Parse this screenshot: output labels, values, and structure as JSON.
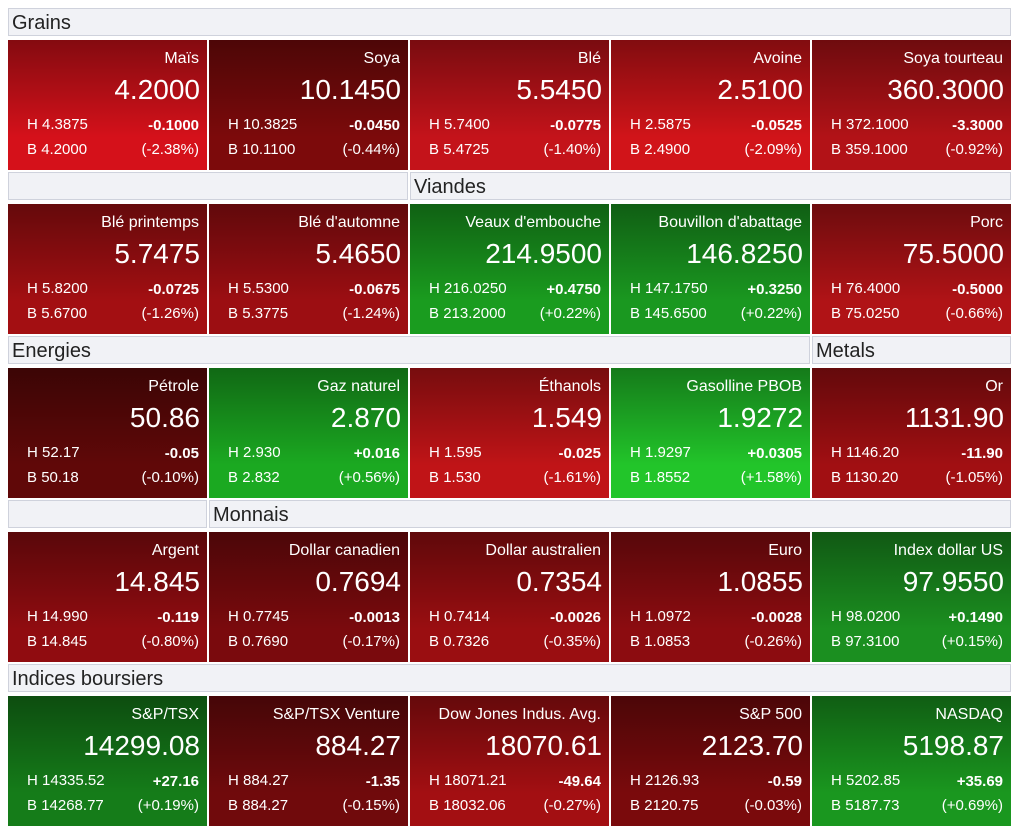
{
  "labels": {
    "high": "H",
    "low": "B"
  },
  "sections": [
    {
      "title": "Grains",
      "tiles": [
        {
          "name": "Maïs",
          "last": "4.2000",
          "high": "4.3875",
          "low": "4.2000",
          "change": "-0.1000",
          "pct": "(-2.38%)",
          "color": "#d5111a"
        },
        {
          "name": "Soya",
          "last": "10.1450",
          "high": "10.3825",
          "low": "10.1100",
          "change": "-0.0450",
          "pct": "(-0.44%)",
          "color": "#7c0a0b"
        },
        {
          "name": "Blé",
          "last": "5.5450",
          "high": "5.7400",
          "low": "5.4725",
          "change": "-0.0775",
          "pct": "(-1.40%)",
          "color": "#c4131a"
        },
        {
          "name": "Avoine",
          "last": "2.5100",
          "high": "2.5875",
          "low": "2.4900",
          "change": "-0.0525",
          "pct": "(-2.09%)",
          "color": "#d11419"
        },
        {
          "name": "Soya tourteau",
          "last": "360.3000",
          "high": "372.1000",
          "low": "359.1000",
          "change": "-3.3000",
          "pct": "(-0.92%)",
          "color": "#b21217"
        },
        {
          "name": "Blé printemps",
          "last": "5.7475",
          "high": "5.8200",
          "low": "5.6700",
          "change": "-0.0725",
          "pct": "(-1.26%)",
          "color": "#a30f12"
        },
        {
          "name": "Blé d'automne",
          "last": "5.4650",
          "high": "5.5300",
          "low": "5.3775",
          "change": "-0.0675",
          "pct": "(-1.24%)",
          "color": "#9c0e12"
        }
      ]
    },
    {
      "title": "Viandes",
      "tiles": [
        {
          "name": "Veaux d'embouche",
          "last": "214.9500",
          "high": "216.0250",
          "low": "213.2000",
          "change": "+0.4750",
          "pct": "(+0.22%)",
          "color": "#1a9c1f"
        },
        {
          "name": "Bouvillon d'abattage",
          "last": "146.8250",
          "high": "147.1750",
          "low": "145.6500",
          "change": "+0.3250",
          "pct": "(+0.22%)",
          "color": "#1a9820"
        },
        {
          "name": "Porc",
          "last": "75.5000",
          "high": "76.4000",
          "low": "75.0250",
          "change": "-0.5000",
          "pct": "(-0.66%)",
          "color": "#b01316"
        }
      ]
    },
    {
      "title": "Energies",
      "tiles": [
        {
          "name": "Pétrole",
          "last": "50.86",
          "high": "52.17",
          "low": "50.18",
          "change": "-0.05",
          "pct": "(-0.10%)",
          "color": "#600808"
        },
        {
          "name": "Gaz naturel",
          "last": "2.870",
          "high": "2.930",
          "low": "2.832",
          "change": "+0.016",
          "pct": "(+0.56%)",
          "color": "#1ba921"
        },
        {
          "name": "Éthanols",
          "last": "1.549",
          "high": "1.595",
          "low": "1.530",
          "change": "-0.025",
          "pct": "(-1.61%)",
          "color": "#c01417"
        },
        {
          "name": "Gasolline PBOB",
          "last": "1.9272",
          "high": "1.9297",
          "low": "1.8552",
          "change": "+0.0305",
          "pct": "(+1.58%)",
          "color": "#22c52a"
        }
      ]
    },
    {
      "title": "Metals",
      "tiles": [
        {
          "name": "Or",
          "last": "1131.90",
          "high": "1146.20",
          "low": "1130.20",
          "change": "-11.90",
          "pct": "(-1.05%)",
          "color": "#a10f12"
        },
        {
          "name": "Argent",
          "last": "14.845",
          "high": "14.990",
          "low": "14.845",
          "change": "-0.119",
          "pct": "(-0.80%)",
          "color": "#900c10"
        }
      ]
    },
    {
      "title": "Monnais",
      "tiles": [
        {
          "name": "Dollar canadien",
          "last": "0.7694",
          "high": "0.7745",
          "low": "0.7690",
          "change": "-0.0013",
          "pct": "(-0.17%)",
          "color": "#7a0a0d"
        },
        {
          "name": "Dollar australien",
          "last": "0.7354",
          "high": "0.7414",
          "low": "0.7326",
          "change": "-0.0026",
          "pct": "(-0.35%)",
          "color": "#9a0e11"
        },
        {
          "name": "Euro",
          "last": "1.0855",
          "high": "1.0972",
          "low": "1.0853",
          "change": "-0.0028",
          "pct": "(-0.26%)",
          "color": "#8c0c10"
        },
        {
          "name": "Index dollar US",
          "last": "97.9550",
          "high": "98.0200",
          "low": "97.3100",
          "change": "+0.1490",
          "pct": "(+0.15%)",
          "color": "#1b8f20"
        }
      ]
    },
    {
      "title": "Indices boursiers",
      "tiles": [
        {
          "name": "S&P/TSX",
          "last": "14299.08",
          "high": "14335.52",
          "low": "14268.77",
          "change": "+27.16",
          "pct": "(+0.19%)",
          "color": "#157c19"
        },
        {
          "name": "S&P/TSX Venture",
          "last": "884.27",
          "high": "884.27",
          "low": "884.27",
          "change": "-1.35",
          "pct": "(-0.15%)",
          "color": "#700a0c"
        },
        {
          "name": "Dow Jones Indus. Avg.",
          "last": "18070.61",
          "high": "18071.21",
          "low": "18032.06",
          "change": "-49.64",
          "pct": "(-0.27%)",
          "color": "#a30f12"
        },
        {
          "name": "S&P 500",
          "last": "2123.70",
          "high": "2126.93",
          "low": "2120.75",
          "change": "-0.59",
          "pct": "(-0.03%)",
          "color": "#7a0a0c"
        },
        {
          "name": "NASDAQ",
          "last": "5198.87",
          "high": "5202.85",
          "low": "5187.73",
          "change": "+35.69",
          "pct": "(+0.69%)",
          "color": "#1a971f"
        }
      ]
    }
  ]
}
